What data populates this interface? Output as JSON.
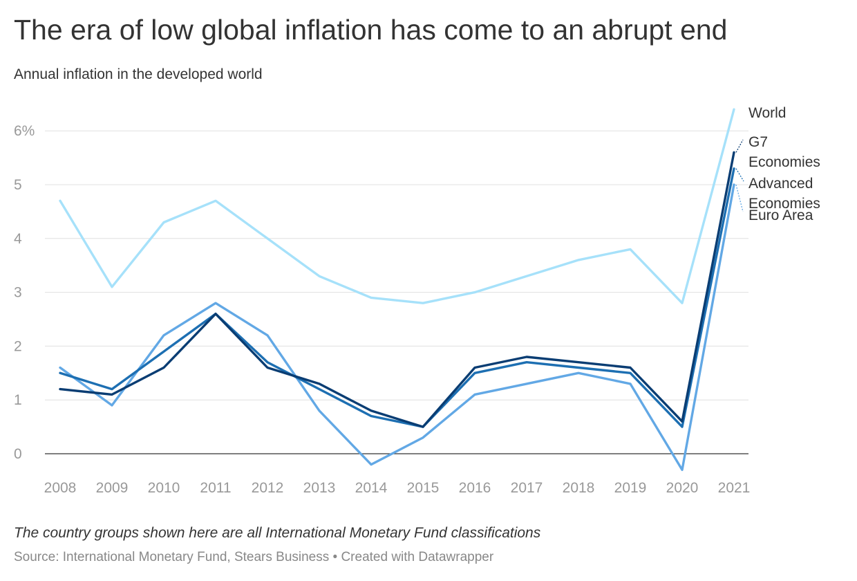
{
  "title": "The era of low global inflation has come to an abrupt end",
  "subtitle": "Annual inflation in the developed world",
  "note": "The country groups shown here are all International Monetary Fund classifications",
  "source": "Source: International Monetary Fund, Stears Business • Created with Datawrapper",
  "colors": {
    "world": "#a6e1fa",
    "euro_area": "#62a8e5",
    "advanced_economies": "#1d6fb2",
    "g7_economies": "#0a3d73",
    "grid": "#e0e0e0",
    "zero_line": "#333333"
  },
  "chart_data": {
    "type": "line",
    "title": "The era of low global inflation has come to an abrupt end",
    "subtitle": "Annual inflation in the developed world",
    "x": [
      2008,
      2009,
      2010,
      2011,
      2012,
      2013,
      2014,
      2015,
      2016,
      2017,
      2018,
      2019,
      2020,
      2021
    ],
    "xlabel": "",
    "ylabel": "",
    "ylim": [
      -0.4,
      6.5
    ],
    "yticks": [
      0,
      1,
      2,
      3,
      4,
      5,
      6
    ],
    "ytick_labels": [
      "0",
      "1",
      "2",
      "3",
      "4",
      "5",
      "6%"
    ],
    "grid": true,
    "legend": "direct labels at line ends (right)",
    "series": [
      {
        "name": "World",
        "key": "world",
        "values": [
          4.7,
          3.1,
          4.3,
          4.7,
          4.0,
          3.3,
          2.9,
          2.8,
          3.0,
          3.3,
          3.6,
          3.8,
          2.8,
          6.4
        ]
      },
      {
        "name": "Euro Area",
        "key": "euro_area",
        "values": [
          1.6,
          0.9,
          2.2,
          2.8,
          2.2,
          0.8,
          -0.2,
          0.3,
          1.1,
          1.3,
          1.5,
          1.3,
          -0.3,
          5.0
        ]
      },
      {
        "name": "Advanced Economies",
        "key": "advanced_economies",
        "values": [
          1.5,
          1.2,
          1.9,
          2.6,
          1.7,
          1.2,
          0.7,
          0.5,
          1.5,
          1.7,
          1.6,
          1.5,
          0.5,
          5.3
        ]
      },
      {
        "name": "G7 Economies",
        "key": "g7_economies",
        "values": [
          1.2,
          1.1,
          1.6,
          2.6,
          1.6,
          1.3,
          0.8,
          0.5,
          1.6,
          1.8,
          1.7,
          1.6,
          0.6,
          5.6
        ]
      }
    ],
    "end_labels": [
      {
        "key": "world",
        "lines": [
          "World"
        ]
      },
      {
        "key": "g7_economies",
        "lines": [
          "G7",
          "Economies"
        ]
      },
      {
        "key": "advanced_economies",
        "lines": [
          "Advanced",
          "Economies"
        ]
      },
      {
        "key": "euro_area",
        "lines": [
          "Euro Area"
        ]
      }
    ]
  }
}
